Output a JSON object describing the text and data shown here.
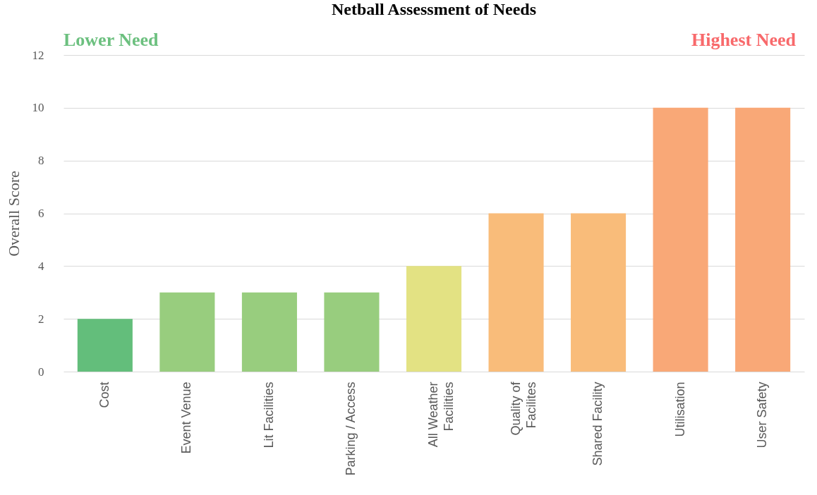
{
  "chart_data": {
    "type": "bar",
    "title": "Netball Assessment of Needs",
    "ylabel": "Overall Score",
    "categories": [
      "Cost",
      "Event Venue",
      "Lit Facilities",
      "Parking / Access",
      "All Weather\nFacilities",
      "Quality of\nFacilites",
      "Shared Facility",
      "Utilisation",
      "User Safety"
    ],
    "values": [
      2,
      3,
      3,
      3,
      4,
      6,
      6,
      10,
      10
    ],
    "colors": [
      "#63be7b",
      "#98cd7e",
      "#98cd7e",
      "#98cd7e",
      "#e3e283",
      "#f9bc7a",
      "#f9bc7a",
      "#f9a877",
      "#f9a877"
    ],
    "ylim": [
      0,
      12
    ],
    "yticks": [
      0,
      2,
      4,
      6,
      8,
      10,
      12
    ],
    "grid": "y",
    "annotations": [
      "Lower Need",
      "Highest Need"
    ]
  }
}
